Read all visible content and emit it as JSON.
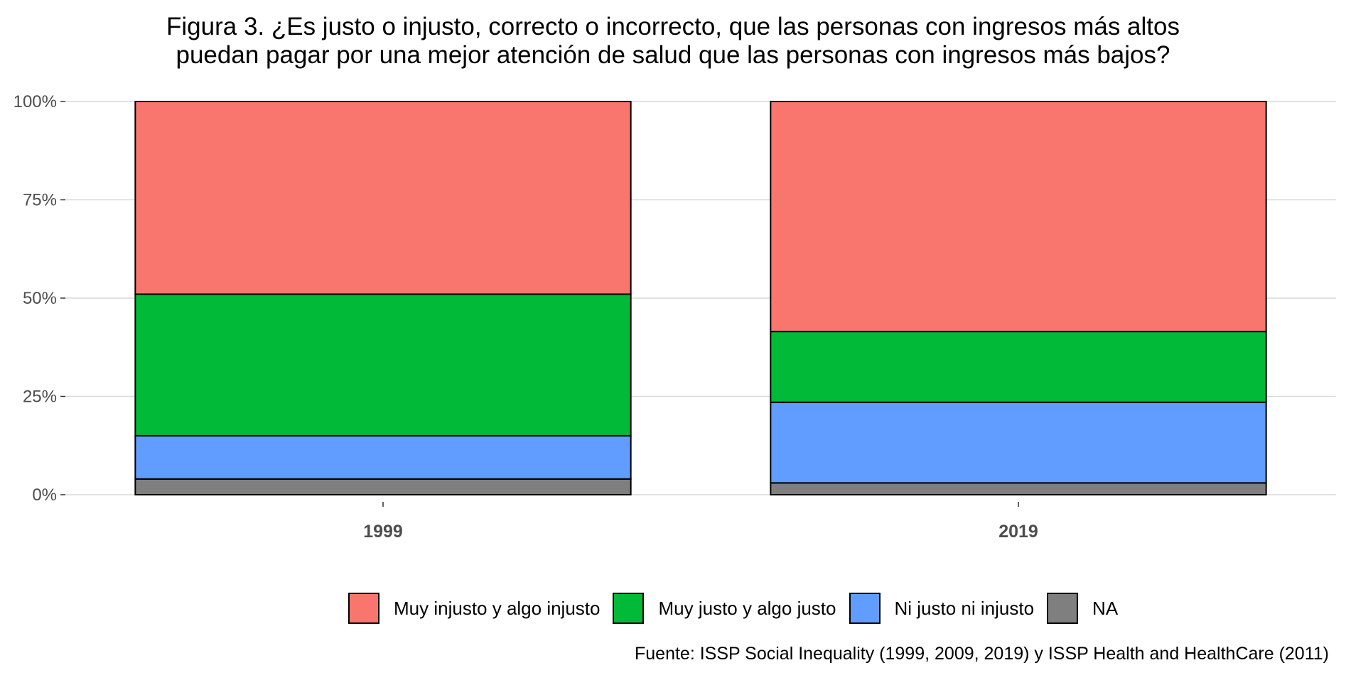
{
  "chart_data": {
    "type": "bar",
    "stacked": true,
    "normalized": true,
    "title": "Figura 3. ¿Es justo o injusto, correcto o incorrecto, que las personas con ingresos más altos puedan pagar por una mejor atención de salud que las personas con ingresos más bajos?",
    "title_lines": [
      "Figura 3. ¿Es justo o injusto, correcto o incorrecto, que las personas con ingresos más altos",
      "puedan pagar por una mejor atención de salud que las personas con ingresos más bajos?"
    ],
    "categories": [
      "1999",
      "2019"
    ],
    "series": [
      {
        "name": "NA",
        "color": "#7f7f7f",
        "values": [
          4,
          3
        ]
      },
      {
        "name": "Ni justo ni injusto",
        "color": "#619cff",
        "values": [
          11,
          20.5
        ]
      },
      {
        "name": "Muy justo y algo justo",
        "color": "#00ba38",
        "values": [
          36,
          18
        ]
      },
      {
        "name": "Muy injusto y algo injusto",
        "color": "#f8766d",
        "values": [
          49,
          58.5
        ]
      }
    ],
    "legend_order": [
      "Muy injusto y algo injusto",
      "Muy justo y algo justo",
      "Ni justo ni injusto",
      "NA"
    ],
    "ylim": [
      0,
      100
    ],
    "yticks": [
      0,
      25,
      50,
      75,
      100
    ],
    "ytick_labels": [
      "0%",
      "25%",
      "50%",
      "75%",
      "100%"
    ],
    "xlabel": "",
    "ylabel": "",
    "grid": true,
    "legend_position": "bottom",
    "caption": "Fuente: ISSP Social Inequality (1999, 2009, 2019) y ISSP Health and HealthCare (2011)"
  }
}
